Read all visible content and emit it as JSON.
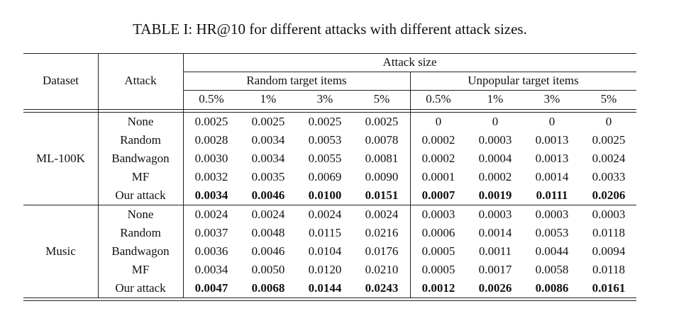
{
  "title": "TABLE I: HR@10 for different attacks with different attack sizes.",
  "header": {
    "dataset": "Dataset",
    "attack": "Attack",
    "attack_size": "Attack size",
    "groups": [
      "Random target items",
      "Unpopular target items"
    ],
    "sizes": [
      "0.5%",
      "1%",
      "3%",
      "5%",
      "0.5%",
      "1%",
      "3%",
      "5%"
    ]
  },
  "datasets": [
    {
      "name": "ML-100K",
      "rows": [
        {
          "attack": "None",
          "bold": false,
          "values": [
            "0.0025",
            "0.0025",
            "0.0025",
            "0.0025",
            "0",
            "0",
            "0",
            "0"
          ]
        },
        {
          "attack": "Random",
          "bold": false,
          "values": [
            "0.0028",
            "0.0034",
            "0.0053",
            "0.0078",
            "0.0002",
            "0.0003",
            "0.0013",
            "0.0025"
          ]
        },
        {
          "attack": "Bandwagon",
          "bold": false,
          "values": [
            "0.0030",
            "0.0034",
            "0.0055",
            "0.0081",
            "0.0002",
            "0.0004",
            "0.0013",
            "0.0024"
          ]
        },
        {
          "attack": "MF",
          "bold": false,
          "values": [
            "0.0032",
            "0.0035",
            "0.0069",
            "0.0090",
            "0.0001",
            "0.0002",
            "0.0014",
            "0.0033"
          ]
        },
        {
          "attack": "Our attack",
          "bold": true,
          "values": [
            "0.0034",
            "0.0046",
            "0.0100",
            "0.0151",
            "0.0007",
            "0.0019",
            "0.0111",
            "0.0206"
          ]
        }
      ]
    },
    {
      "name": "Music",
      "rows": [
        {
          "attack": "None",
          "bold": false,
          "values": [
            "0.0024",
            "0.0024",
            "0.0024",
            "0.0024",
            "0.0003",
            "0.0003",
            "0.0003",
            "0.0003"
          ]
        },
        {
          "attack": "Random",
          "bold": false,
          "values": [
            "0.0037",
            "0.0048",
            "0.0115",
            "0.0216",
            "0.0006",
            "0.0014",
            "0.0053",
            "0.0118"
          ]
        },
        {
          "attack": "Bandwagon",
          "bold": false,
          "values": [
            "0.0036",
            "0.0046",
            "0.0104",
            "0.0176",
            "0.0005",
            "0.0011",
            "0.0044",
            "0.0094"
          ]
        },
        {
          "attack": "MF",
          "bold": false,
          "values": [
            "0.0034",
            "0.0050",
            "0.0120",
            "0.0210",
            "0.0005",
            "0.0017",
            "0.0058",
            "0.0118"
          ]
        },
        {
          "attack": "Our attack",
          "bold": true,
          "values": [
            "0.0047",
            "0.0068",
            "0.0144",
            "0.0243",
            "0.0012",
            "0.0026",
            "0.0086",
            "0.0161"
          ]
        }
      ]
    }
  ]
}
